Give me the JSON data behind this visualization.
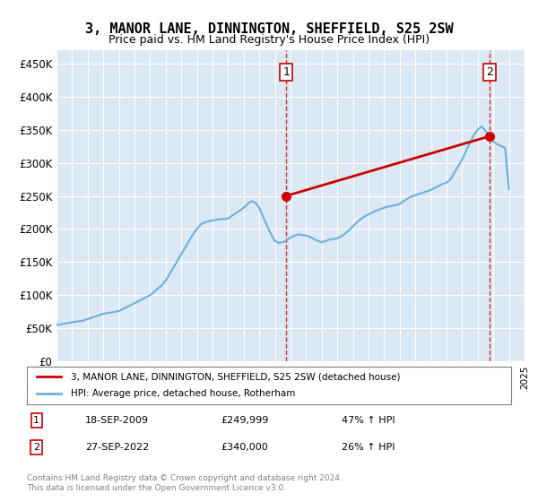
{
  "title": "3, MANOR LANE, DINNINGTON, SHEFFIELD, S25 2SW",
  "subtitle": "Price paid vs. HM Land Registry's House Price Index (HPI)",
  "ylabel": "",
  "ylim": [
    0,
    470000
  ],
  "yticks": [
    0,
    50000,
    100000,
    150000,
    200000,
    250000,
    300000,
    350000,
    400000,
    450000
  ],
  "ytick_labels": [
    "£0",
    "£50K",
    "£100K",
    "£150K",
    "£200K",
    "£250K",
    "£300K",
    "£350K",
    "£400K",
    "£450K"
  ],
  "bg_color": "#dce9f5",
  "plot_bg": "#dce9f5",
  "hpi_color": "#6ab0e0",
  "price_color": "#cc0000",
  "marker_color": "#cc0000",
  "legend_label_price": "3, MANOR LANE, DINNINGTON, SHEFFIELD, S25 2SW (detached house)",
  "legend_label_hpi": "HPI: Average price, detached house, Rotherham",
  "annotation1_label": "1",
  "annotation1_date": "18-SEP-2009",
  "annotation1_price": "£249,999",
  "annotation1_pct": "47% ↑ HPI",
  "annotation2_label": "2",
  "annotation2_date": "27-SEP-2022",
  "annotation2_price": "£340,000",
  "annotation2_pct": "26% ↑ HPI",
  "footnote": "Contains HM Land Registry data © Crown copyright and database right 2024.\nThis data is licensed under the Open Government Licence v3.0.",
  "hpi_years": [
    1995,
    1995.25,
    1995.5,
    1995.75,
    1996,
    1996.25,
    1996.5,
    1996.75,
    1997,
    1997.25,
    1997.5,
    1997.75,
    1998,
    1998.25,
    1998.5,
    1998.75,
    1999,
    1999.25,
    1999.5,
    1999.75,
    2000,
    2000.25,
    2000.5,
    2000.75,
    2001,
    2001.25,
    2001.5,
    2001.75,
    2002,
    2002.25,
    2002.5,
    2002.75,
    2003,
    2003.25,
    2003.5,
    2003.75,
    2004,
    2004.25,
    2004.5,
    2004.75,
    2005,
    2005.25,
    2005.5,
    2005.75,
    2006,
    2006.25,
    2006.5,
    2006.75,
    2007,
    2007.25,
    2007.5,
    2007.75,
    2008,
    2008.25,
    2008.5,
    2008.75,
    2009,
    2009.25,
    2009.5,
    2009.75,
    2010,
    2010.25,
    2010.5,
    2010.75,
    2011,
    2011.25,
    2011.5,
    2011.75,
    2012,
    2012.25,
    2012.5,
    2012.75,
    2013,
    2013.25,
    2013.5,
    2013.75,
    2014,
    2014.25,
    2014.5,
    2014.75,
    2015,
    2015.25,
    2015.5,
    2015.75,
    2016,
    2016.25,
    2016.5,
    2016.75,
    2017,
    2017.25,
    2017.5,
    2017.75,
    2018,
    2018.25,
    2018.5,
    2018.75,
    2019,
    2019.25,
    2019.5,
    2019.75,
    2020,
    2020.25,
    2020.5,
    2020.75,
    2021,
    2021.25,
    2021.5,
    2021.75,
    2022,
    2022.25,
    2022.5,
    2022.75,
    2023,
    2023.25,
    2023.5,
    2023.75,
    2024
  ],
  "hpi_values": [
    55000,
    56000,
    57000,
    58000,
    59000,
    60000,
    61000,
    62000,
    64000,
    66000,
    68000,
    70000,
    72000,
    73000,
    74000,
    75000,
    76000,
    79000,
    82000,
    85000,
    88000,
    91000,
    94000,
    97000,
    100000,
    105000,
    110000,
    115000,
    122000,
    132000,
    142000,
    152000,
    162000,
    172000,
    182000,
    192000,
    200000,
    207000,
    210000,
    212000,
    213000,
    214000,
    215000,
    215000,
    216000,
    220000,
    224000,
    228000,
    232000,
    238000,
    242000,
    240000,
    232000,
    218000,
    205000,
    192000,
    182000,
    179000,
    180000,
    183000,
    187000,
    190000,
    192000,
    191000,
    190000,
    188000,
    185000,
    182000,
    180000,
    182000,
    184000,
    185000,
    186000,
    189000,
    193000,
    198000,
    204000,
    210000,
    215000,
    219000,
    222000,
    225000,
    228000,
    230000,
    232000,
    234000,
    235000,
    236000,
    238000,
    242000,
    246000,
    249000,
    251000,
    253000,
    255000,
    257000,
    259000,
    262000,
    265000,
    268000,
    270000,
    275000,
    285000,
    295000,
    305000,
    318000,
    330000,
    342000,
    350000,
    355000,
    348000,
    340000,
    332000,
    328000,
    325000,
    323000,
    260000
  ],
  "price_years": [
    2009.72,
    2022.74
  ],
  "price_values": [
    249999,
    340000
  ],
  "vline1_x": 2009.72,
  "vline2_x": 2022.74,
  "xmin": 1995,
  "xmax": 2025
}
